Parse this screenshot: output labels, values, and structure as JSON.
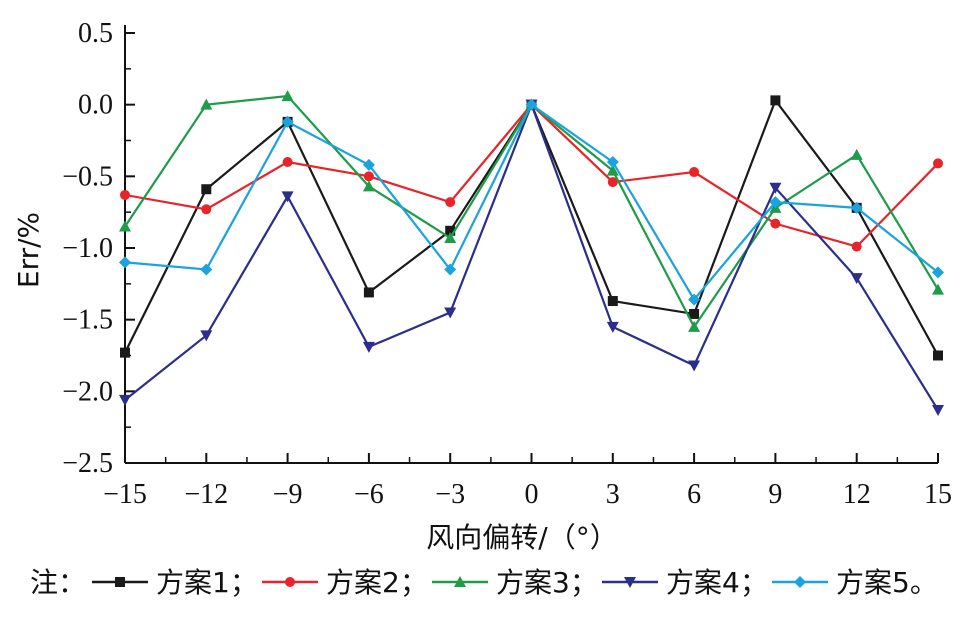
{
  "chart_data": {
    "type": "line",
    "xlabel": "风向偏转/（°）",
    "ylabel": "Err/%",
    "x": [
      -15,
      -12,
      -9,
      -6,
      -3,
      0,
      3,
      6,
      9,
      12,
      15
    ],
    "xticks": [
      "−15",
      "−12",
      "−9",
      "−6",
      "−3",
      "0",
      "3",
      "6",
      "9",
      "12",
      "15"
    ],
    "yticks": [
      0.5,
      0.0,
      -0.5,
      -1.0,
      -1.5,
      -2.0,
      -2.5
    ],
    "ytick_labels": [
      "0.5",
      "0.0",
      "−0.5",
      "−1.0",
      "−1.5",
      "−2.0",
      "−2.5"
    ],
    "ylim": [
      -2.5,
      0.5
    ],
    "xlim": [
      -15,
      15
    ],
    "grid": false,
    "series": [
      {
        "name": "方案1",
        "color": "#1a1a1a",
        "marker": "square",
        "values": [
          -1.73,
          -0.59,
          -0.12,
          -1.31,
          -0.88,
          0.0,
          -1.37,
          -1.46,
          0.03,
          -0.72,
          -1.75
        ]
      },
      {
        "name": "方案2",
        "color": "#e8242a",
        "marker": "circle",
        "values": [
          -0.63,
          -0.73,
          -0.4,
          -0.5,
          -0.68,
          0.0,
          -0.54,
          -0.47,
          -0.83,
          -0.99,
          -0.41
        ]
      },
      {
        "name": "方案3",
        "color": "#1f9c4a",
        "marker": "triangle-up",
        "values": [
          -0.85,
          0.0,
          0.06,
          -0.57,
          -0.93,
          0.0,
          -0.46,
          -1.55,
          -0.72,
          -0.35,
          -1.29
        ]
      },
      {
        "name": "方案4",
        "color": "#2b2e8c",
        "marker": "triangle-down",
        "values": [
          -2.06,
          -1.61,
          -0.64,
          -1.69,
          -1.45,
          0.0,
          -1.55,
          -1.82,
          -0.58,
          -1.21,
          -2.13
        ]
      },
      {
        "name": "方案5",
        "color": "#1aa3dc",
        "marker": "diamond",
        "values": [
          -1.1,
          -1.15,
          -0.12,
          -0.42,
          -1.15,
          0.0,
          -0.4,
          -1.36,
          -0.68,
          -0.72,
          -1.17
        ]
      }
    ],
    "note": {
      "prefix": "注：",
      "separator": "；",
      "end": "。"
    }
  }
}
